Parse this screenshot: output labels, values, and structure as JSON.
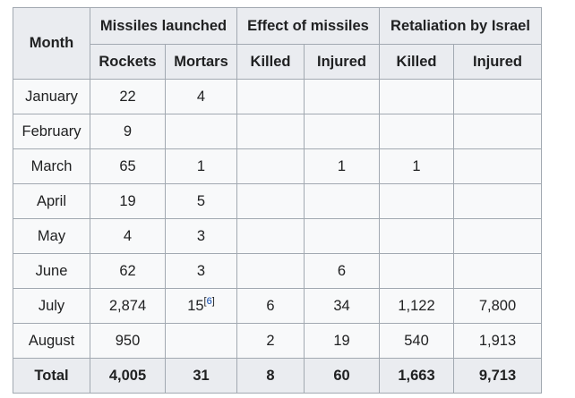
{
  "table": {
    "top_headers": {
      "month": "Month",
      "missiles_launched": "Missiles launched",
      "effect_of_missiles": "Effect of missiles",
      "retaliation_by_israel": "Retaliation by Israel"
    },
    "sub_headers": [
      "Rockets",
      "Mortars",
      "Killed",
      "Injured",
      "Killed",
      "Injured"
    ],
    "rows": [
      {
        "month": "January",
        "rockets": "22",
        "mortars": "4",
        "mortars_ref": "",
        "effect_killed": "",
        "effect_injured": "",
        "retaliation_killed": "",
        "retaliation_injured": ""
      },
      {
        "month": "February",
        "rockets": "9",
        "mortars": "",
        "mortars_ref": "",
        "effect_killed": "",
        "effect_injured": "",
        "retaliation_killed": "",
        "retaliation_injured": ""
      },
      {
        "month": "March",
        "rockets": "65",
        "mortars": "1",
        "mortars_ref": "",
        "effect_killed": "",
        "effect_injured": "1",
        "retaliation_killed": "1",
        "retaliation_injured": ""
      },
      {
        "month": "April",
        "rockets": "19",
        "mortars": "5",
        "mortars_ref": "",
        "effect_killed": "",
        "effect_injured": "",
        "retaliation_killed": "",
        "retaliation_injured": ""
      },
      {
        "month": "May",
        "rockets": "4",
        "mortars": "3",
        "mortars_ref": "",
        "effect_killed": "",
        "effect_injured": "",
        "retaliation_killed": "",
        "retaliation_injured": ""
      },
      {
        "month": "June",
        "rockets": "62",
        "mortars": "3",
        "mortars_ref": "",
        "effect_killed": "",
        "effect_injured": "6",
        "retaliation_killed": "",
        "retaliation_injured": ""
      },
      {
        "month": "July",
        "rockets": "2,874",
        "mortars": "15",
        "mortars_ref": "6",
        "effect_killed": "6",
        "effect_injured": "34",
        "retaliation_killed": "1,122",
        "retaliation_injured": "7,800"
      },
      {
        "month": "August",
        "rockets": "950",
        "mortars": "",
        "mortars_ref": "",
        "effect_killed": "2",
        "effect_injured": "19",
        "retaliation_killed": "540",
        "retaliation_injured": "1,913"
      }
    ],
    "total": {
      "label": "Total",
      "rockets": "4,005",
      "mortars": "31",
      "effect_killed": "8",
      "effect_injured": "60",
      "retaliation_killed": "1,663",
      "retaliation_injured": "9,713"
    },
    "colors": {
      "header_bg": "#eaecf0",
      "cell_bg": "#f8f9fa",
      "border": "#a2a9b1",
      "text": "#202122",
      "link": "#0645ad"
    }
  }
}
